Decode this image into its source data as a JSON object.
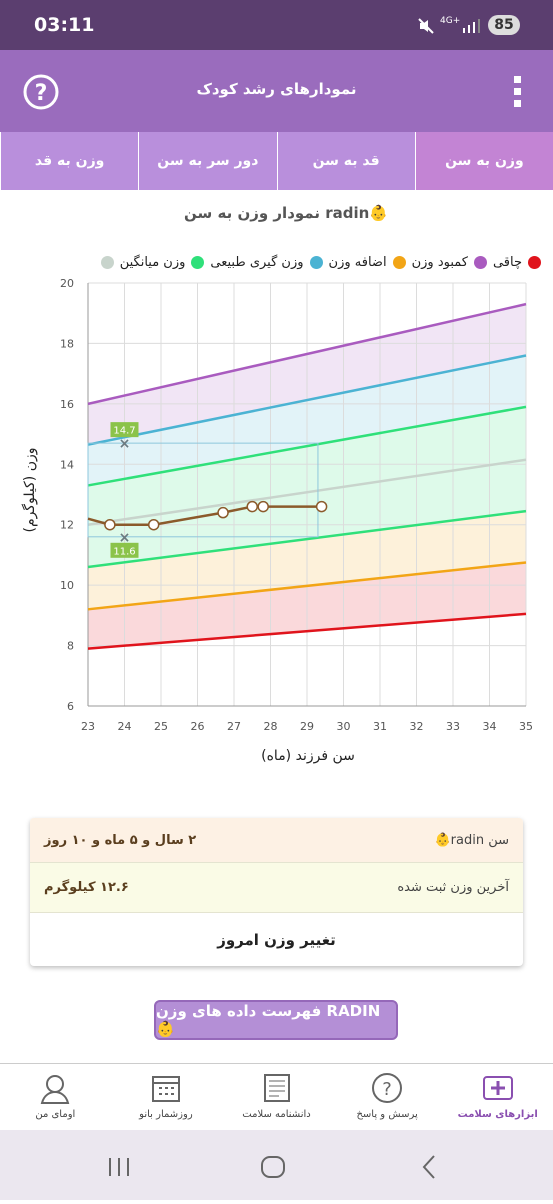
{
  "status_bar": {
    "time": "03:11",
    "network": "4G+",
    "battery": "85"
  },
  "app_bar": {
    "title": "نمودارهای رشد کودک"
  },
  "tabs": [
    "وزن به سن",
    "قد به سن",
    "دور سر به سن",
    "وزن به قد"
  ],
  "chart_data": {
    "type": "line",
    "title": "نمودار وزن به سن radin👶",
    "xlabel": "سن فرزند (ماه)",
    "ylabel": "وزن (کیلوگرم)",
    "xlim": [
      23,
      35
    ],
    "xticks": [
      23,
      24,
      25,
      26,
      27,
      28,
      29,
      30,
      31,
      32,
      33,
      34,
      35
    ],
    "ylim": [
      6,
      20
    ],
    "yticks": [
      6,
      8,
      10,
      12,
      14,
      16,
      18,
      20
    ],
    "grid": true,
    "legend": [
      {
        "name": "چاقی",
        "color": "#a95bbf"
      },
      {
        "name": "کمبود وزن",
        "color": "#f2a516"
      },
      {
        "name": "اضافه وزن",
        "color": "#4bb3d3"
      },
      {
        "name": "وزن گیری طبیعی",
        "color": "#2fe07a"
      },
      {
        "name": "وزن میانگین",
        "color": "#c8d4cc"
      }
    ],
    "reference_lines": {
      "x": [
        23,
        35
      ],
      "lines": [
        {
          "color": "#e0141c",
          "values": [
            7.9,
            9.05
          ]
        },
        {
          "color": "#f2a516",
          "values": [
            9.2,
            10.75
          ]
        },
        {
          "color": "#2fe07a",
          "values": [
            10.6,
            12.45
          ]
        },
        {
          "color": "#c8d4cc",
          "values": [
            12.0,
            14.15
          ]
        },
        {
          "color": "#2fe07a",
          "values": [
            13.3,
            15.9
          ]
        },
        {
          "color": "#4bb3d3",
          "values": [
            14.65,
            17.6
          ]
        },
        {
          "color": "#a95bbf",
          "values": [
            16.0,
            19.3
          ]
        }
      ]
    },
    "series": [
      {
        "color": "#8b5a2b",
        "x": [
          23,
          23.6,
          24.8,
          26.7,
          27.5,
          27.8,
          29.4
        ],
        "values": [
          12.2,
          12.0,
          12.0,
          12.4,
          12.6,
          12.6,
          12.6
        ]
      }
    ],
    "markers": [
      {
        "x": 24,
        "y": 14.7
      },
      {
        "x": 24,
        "y": 11.6
      }
    ],
    "range_box_x_end": 29.3
  },
  "info_card": {
    "rows": [
      [
        "سن radin👶",
        "۲ سال و ۵ ماه و ۱۰ روز"
      ],
      [
        "آخرین وزن ثبت شده",
        "۱۲.۶ کیلوگرم"
      ]
    ],
    "action": "تغییر وزن امروز"
  },
  "list_button": "فهرست داده های وزن RADIN👶",
  "bottom_nav": [
    "ابزارهای سلامت",
    "پرسش و پاسخ",
    "دانشنامه سلامت",
    "روزشمار بانو",
    "اومای من"
  ]
}
